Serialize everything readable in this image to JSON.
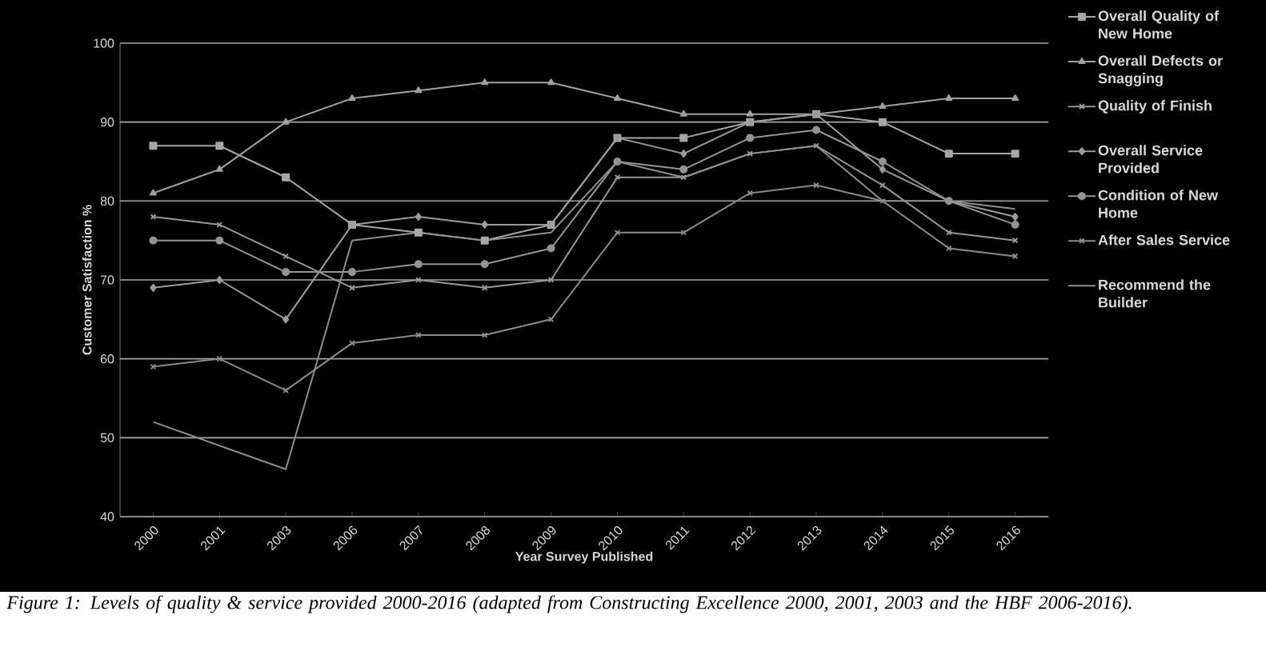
{
  "chart_data": {
    "type": "line",
    "xlabel": "Year Survey Published",
    "ylabel": "Customer Satisfaction %",
    "categories": [
      "2000",
      "2001",
      "2003",
      "2006",
      "2007",
      "2008",
      "2009",
      "2010",
      "2011",
      "2012",
      "2013",
      "2014",
      "2015",
      "2016"
    ],
    "series": [
      {
        "name": "Overall Quality of New Home",
        "color": "#a6a6a6",
        "marker": "square",
        "values": [
          87,
          87,
          83,
          77,
          76,
          75,
          77,
          88,
          88,
          90,
          91,
          90,
          86,
          86
        ]
      },
      {
        "name": "Overall Defects or Snagging",
        "color": "#a0a0a0",
        "marker": "triangle",
        "values": [
          81,
          84,
          90,
          93,
          94,
          95,
          95,
          93,
          91,
          91,
          91,
          92,
          93,
          93
        ]
      },
      {
        "name": "Quality of Finish",
        "color": "#989898",
        "marker": "cross",
        "values": [
          78,
          77,
          73,
          69,
          70,
          69,
          70,
          83,
          83,
          86,
          87,
          82,
          76,
          75
        ]
      },
      {
        "name": "Overall Service Provided",
        "color": "#9c9c9c",
        "marker": "diamond",
        "values": [
          69,
          70,
          65,
          77,
          78,
          77,
          77,
          88,
          86,
          90,
          91,
          84,
          80,
          78
        ]
      },
      {
        "name": "Condition of New Home",
        "color": "#949494",
        "marker": "circle",
        "values": [
          75,
          75,
          71,
          71,
          72,
          72,
          74,
          85,
          84,
          88,
          89,
          85,
          80,
          77
        ]
      },
      {
        "name": "After Sales Service",
        "color": "#8a8a8a",
        "marker": "cross",
        "values": [
          59,
          60,
          56,
          62,
          63,
          63,
          65,
          76,
          76,
          81,
          82,
          80,
          74,
          73
        ]
      },
      {
        "name": "Recommend the Builder",
        "color": "#8e8e8e",
        "marker": "none",
        "values": [
          52,
          49,
          46,
          75,
          76,
          75,
          76,
          85,
          83,
          86,
          87,
          80,
          80,
          79
        ]
      }
    ],
    "ylim": [
      40,
      100
    ],
    "yticks": [
      40,
      50,
      60,
      70,
      80,
      90,
      100
    ],
    "grid": "y",
    "legend": "right",
    "line_style": "solid",
    "annotations": [
      "Figure 1: Levels of quality & service provided 2000-2016 (adapted from Constructing Excellence 2000, 2001, 2003 and the HBF 2006-2016)."
    ]
  }
}
